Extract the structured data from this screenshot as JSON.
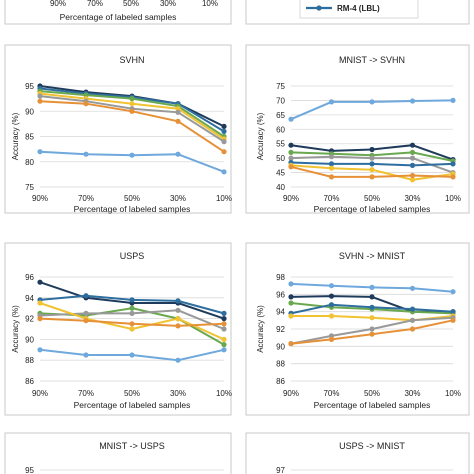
{
  "top_fragment": {
    "x_ticks": [
      "90%",
      "70%",
      "50%",
      "30%",
      "10%"
    ],
    "xlabel": "Percentage of labeled samples",
    "legend_label": "RM-4 (LBL)",
    "legend_color": "#2e6e9e"
  },
  "chart_data": [
    {
      "type": "line",
      "title": "SVHN",
      "xlabel": "Percentage of labeled samples",
      "ylabel": "Accuracy (%)",
      "x": [
        "90%",
        "70%",
        "50%",
        "30%",
        "10%"
      ],
      "ylim": [
        75,
        95
      ],
      "yticks": [
        75,
        80,
        85,
        90,
        95
      ],
      "grid": true,
      "series": [
        {
          "color": "#1f3b5c",
          "values": [
            95.0,
            93.8,
            93.0,
            91.5,
            87.0
          ]
        },
        {
          "color": "#2e6e9e",
          "values": [
            94.5,
            93.5,
            92.8,
            91.5,
            86.0
          ]
        },
        {
          "color": "#6aa84f",
          "values": [
            94.0,
            93.2,
            92.5,
            91.0,
            85.0
          ]
        },
        {
          "color": "#f1c232",
          "values": [
            93.5,
            92.5,
            91.5,
            90.5,
            84.5
          ]
        },
        {
          "color": "#999999",
          "values": [
            93.0,
            92.0,
            90.5,
            89.8,
            84.0
          ]
        },
        {
          "color": "#e69138",
          "values": [
            92.0,
            91.5,
            90.0,
            88.0,
            82.0
          ]
        },
        {
          "color": "#6fa8dc",
          "values": [
            82.0,
            81.5,
            81.3,
            81.5,
            78.0
          ]
        }
      ]
    },
    {
      "type": "line",
      "title": "MNIST -> SVHN",
      "xlabel": "Percentage of labeled samples",
      "ylabel": "Accuracy (%)",
      "x": [
        "90%",
        "70%",
        "50%",
        "30%",
        "10%"
      ],
      "ylim": [
        40,
        75
      ],
      "yticks": [
        40,
        45,
        50,
        55,
        60,
        65,
        70,
        75
      ],
      "grid": true,
      "series": [
        {
          "color": "#6fa8dc",
          "values": [
            63.5,
            69.5,
            69.5,
            69.8,
            70.0
          ]
        },
        {
          "color": "#1f3b5c",
          "values": [
            54.5,
            52.5,
            53.0,
            54.5,
            49.5
          ]
        },
        {
          "color": "#6aa84f",
          "values": [
            52.0,
            51.5,
            51.0,
            52.0,
            49.0
          ]
        },
        {
          "color": "#999999",
          "values": [
            50.0,
            50.5,
            50.0,
            50.0,
            45.0
          ]
        },
        {
          "color": "#2e6e9e",
          "values": [
            48.5,
            48.0,
            48.0,
            47.5,
            48.0
          ]
        },
        {
          "color": "#f1c232",
          "values": [
            47.5,
            46.5,
            46.0,
            42.5,
            44.5
          ]
        },
        {
          "color": "#e69138",
          "values": [
            47.0,
            43.5,
            43.5,
            44.0,
            43.5
          ]
        }
      ]
    },
    {
      "type": "line",
      "title": "USPS",
      "xlabel": "Percentage of labeled samples",
      "ylabel": "Accuracy (%)",
      "x": [
        "90%",
        "70%",
        "50%",
        "30%",
        "10%"
      ],
      "ylim": [
        86,
        96
      ],
      "yticks": [
        86,
        88,
        90,
        92,
        94,
        96
      ],
      "grid": true,
      "series": [
        {
          "color": "#1f3b5c",
          "values": [
            95.5,
            94.0,
            93.5,
            93.5,
            92.0
          ]
        },
        {
          "color": "#2e6e9e",
          "values": [
            93.8,
            94.2,
            93.8,
            93.7,
            92.5
          ]
        },
        {
          "color": "#6aa84f",
          "values": [
            92.5,
            92.3,
            93.0,
            92.0,
            89.5
          ]
        },
        {
          "color": "#999999",
          "values": [
            92.3,
            92.5,
            92.5,
            92.8,
            91.0
          ]
        },
        {
          "color": "#f1c232",
          "values": [
            93.5,
            92.0,
            91.0,
            92.0,
            90.0
          ]
        },
        {
          "color": "#e69138",
          "values": [
            92.0,
            91.8,
            91.5,
            91.3,
            91.5
          ]
        },
        {
          "color": "#6fa8dc",
          "values": [
            89.0,
            88.5,
            88.5,
            88.0,
            89.0
          ]
        }
      ]
    },
    {
      "type": "line",
      "title": "SVHN -> MNIST",
      "xlabel": "Percentage of labeled samples",
      "ylabel": "Accuracy (%)",
      "x": [
        "90%",
        "70%",
        "50%",
        "30%",
        "10%"
      ],
      "ylim": [
        86,
        98
      ],
      "yticks": [
        86,
        88,
        90,
        92,
        94,
        96,
        98
      ],
      "grid": true,
      "series": [
        {
          "color": "#6fa8dc",
          "values": [
            97.2,
            97.0,
            96.8,
            96.7,
            96.3
          ]
        },
        {
          "color": "#1f3b5c",
          "values": [
            95.7,
            95.8,
            95.7,
            94.0,
            94.0
          ]
        },
        {
          "color": "#6aa84f",
          "values": [
            95.0,
            94.5,
            94.3,
            94.0,
            93.8
          ]
        },
        {
          "color": "#2e6e9e",
          "values": [
            93.8,
            94.8,
            94.5,
            94.3,
            94.0
          ]
        },
        {
          "color": "#f1c232",
          "values": [
            93.5,
            93.5,
            93.3,
            93.0,
            93.5
          ]
        },
        {
          "color": "#999999",
          "values": [
            90.3,
            91.2,
            92.0,
            93.0,
            93.3
          ]
        },
        {
          "color": "#e69138",
          "values": [
            90.3,
            90.8,
            91.4,
            92.0,
            93.0
          ]
        }
      ]
    },
    {
      "type": "line",
      "title": "MNIST -> USPS",
      "yticks_visible": [
        95
      ]
    },
    {
      "type": "line",
      "title": "USPS -> MNIST",
      "yticks_visible": [
        97
      ]
    }
  ]
}
